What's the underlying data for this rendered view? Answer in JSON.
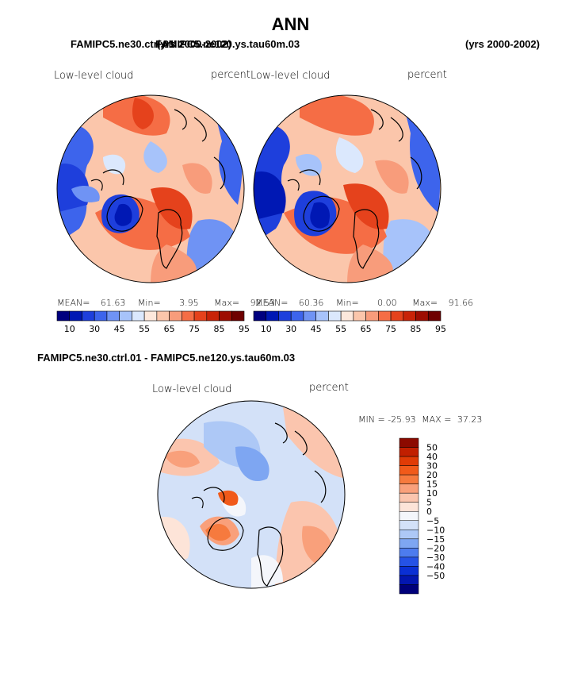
{
  "title": "ANN",
  "header": {
    "left_case": "FAMIPC5.ne30.ctrl.01",
    "left_years": "(yrs 2000-2002)",
    "right_case": "FAMIPC5.ne120.ys.tau60m.03",
    "right_years": "(yrs 2000-2002)"
  },
  "panels": [
    {
      "id": "left-map",
      "variable": "Low-level cloud",
      "units": "percent",
      "mean_label": "MEAN=",
      "mean": "61.63",
      "min_label": "Min=",
      "min": "3.95",
      "max_label": "Max=",
      "max": "92.53"
    },
    {
      "id": "right-map",
      "variable": "Low-level cloud",
      "units": "percent",
      "mean_label": "MEAN=",
      "mean": "60.36",
      "min_label": "Min=",
      "min": "0.00",
      "max_label": "Max=",
      "max": "91.66"
    }
  ],
  "colorbar_top": {
    "colors": [
      "#00007f",
      "#0018b4",
      "#1e3fdc",
      "#3d64ec",
      "#6f93f4",
      "#a7c3fa",
      "#dbe8fd",
      "#fde8dc",
      "#fbc6ab",
      "#f89c7b",
      "#f56d45",
      "#e5421c",
      "#c82308",
      "#9d0d02",
      "#6e0000"
    ],
    "labels": [
      "10",
      "30",
      "45",
      "55",
      "65",
      "75",
      "85",
      "95"
    ]
  },
  "diff": {
    "title": "FAMIPC5.ne30.ctrl.01 - FAMIPC5.ne120.ys.tau60m.03",
    "variable": "Low-level cloud",
    "units": "percent",
    "min_label": "MIN =",
    "min": "-25.93",
    "max_label": "MAX =",
    "max": "37.23",
    "colors": [
      "#8c0a00",
      "#c11f00",
      "#e03b06",
      "#f15a1a",
      "#f67a3e",
      "#f9a07b",
      "#fbc5ae",
      "#fde4d8",
      "#f4f6fb",
      "#d3e1f8",
      "#adc8f6",
      "#7ea6f2",
      "#4d7cee",
      "#2552e6",
      "#0a2fd4",
      "#0316b0",
      "#00007a"
    ],
    "labels": [
      "50",
      "40",
      "30",
      "20",
      "15",
      "10",
      "5",
      "0",
      "−5",
      "−10",
      "−15",
      "−20",
      "−30",
      "−40",
      "−50"
    ]
  }
}
